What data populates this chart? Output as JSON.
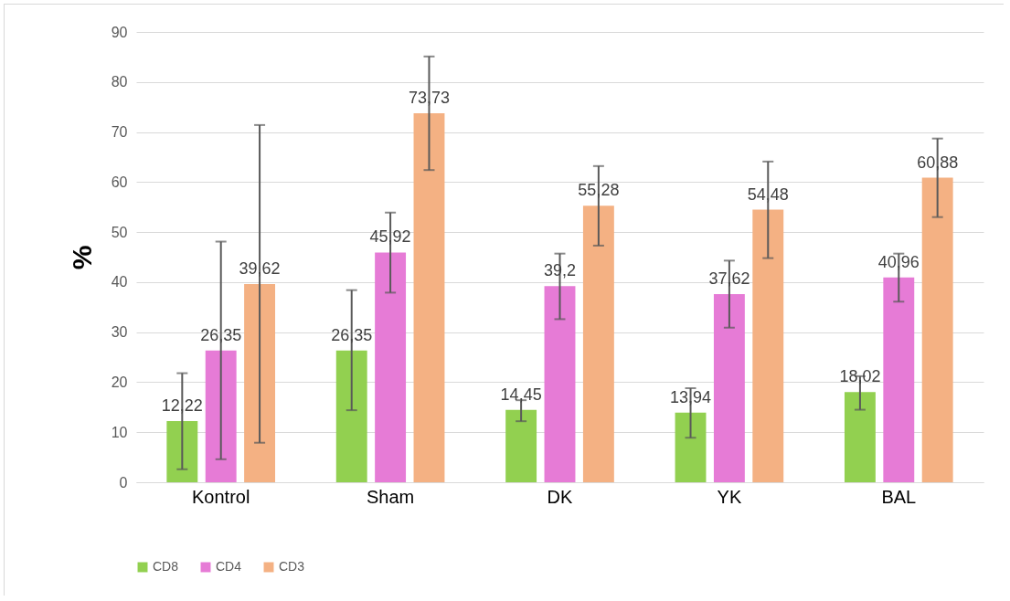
{
  "chart_data": {
    "type": "bar",
    "ylabel": "%",
    "categories": [
      "Kontrol",
      "Sham",
      "DK",
      "YK",
      "BAL"
    ],
    "series": [
      {
        "name": "CD8",
        "color": "#92d050",
        "values": [
          12.22,
          26.35,
          14.45,
          13.94,
          18.02
        ],
        "value_labels": [
          "12,22",
          "26,35",
          "14,45",
          "13,94",
          "18,02"
        ],
        "errors": [
          [
            2.6,
            21.8
          ],
          [
            14.4,
            38.4
          ],
          [
            12.2,
            16.4
          ],
          [
            8.9,
            18.8
          ],
          [
            14.5,
            21.2
          ]
        ]
      },
      {
        "name": "CD4",
        "color": "#e67bd6",
        "values": [
          26.35,
          45.92,
          39.2,
          37.62,
          40.96
        ],
        "value_labels": [
          "26,35",
          "45,92",
          "39,2",
          "37,62",
          "40,96"
        ],
        "errors": [
          [
            4.6,
            48.1
          ],
          [
            37.9,
            53.9
          ],
          [
            32.6,
            45.7
          ],
          [
            30.9,
            44.3
          ],
          [
            36.1,
            45.7
          ]
        ]
      },
      {
        "name": "CD3",
        "color": "#f4b183",
        "values": [
          39.62,
          73.73,
          55.28,
          54.48,
          60.88
        ],
        "value_labels": [
          "39,62",
          "73,73",
          "55,28",
          "54,48",
          "60,88"
        ],
        "errors": [
          [
            7.9,
            71.4
          ],
          [
            62.4,
            85.1
          ],
          [
            47.3,
            63.2
          ],
          [
            44.8,
            64.1
          ],
          [
            53.0,
            68.7
          ]
        ]
      }
    ],
    "ylim": [
      0,
      90
    ],
    "yticks": [
      0,
      10,
      20,
      30,
      40,
      50,
      60,
      70,
      80,
      90
    ],
    "grid": "y",
    "legend": "bottom"
  }
}
